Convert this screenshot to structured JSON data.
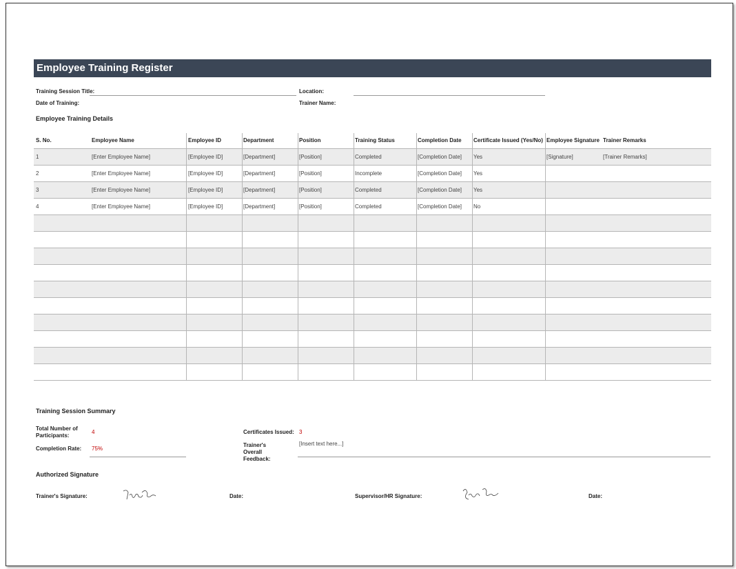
{
  "header": {
    "title": "Employee Training Register"
  },
  "session": {
    "title_label": "Training Session Title:",
    "location_label": "Location:",
    "date_label": "Date of Training:",
    "trainer_label": "Trainer Name:"
  },
  "details_title": "Employee Training Details",
  "table": {
    "columns": [
      "S. No.",
      "Employee Name",
      "Employee ID",
      "Department",
      "Position",
      "Training Status",
      "Completion Date",
      "Certificate Issued (Yes/No)",
      "Employee Signature",
      "Trainer Remarks"
    ],
    "rows": [
      [
        "1",
        "[Enter Employee Name]",
        "[Employee ID]",
        "[Department]",
        "[Position]",
        "Completed",
        "[Completion Date]",
        "Yes",
        "[Signature]",
        "[Trainer Remarks]"
      ],
      [
        "2",
        "[Enter Employee Name]",
        "[Employee ID]",
        "[Department]",
        "[Position]",
        "Incomplete",
        "[Completion Date]",
        "Yes"
      ],
      [
        "3",
        "[Enter Employee Name]",
        "[Employee ID]",
        "[Department]",
        "[Position]",
        "Completed",
        "[Completion Date]",
        "Yes"
      ],
      [
        "4",
        "[Enter Employee Name]",
        "[Employee ID]",
        "[Department]",
        "[Position]",
        "Completed",
        "[Completion Date]",
        "No"
      ]
    ]
  },
  "summary": {
    "title": "Training Session Summary",
    "participants_label": "Total Number of Participants:",
    "participants": "4",
    "completion_label": "Completion Rate:",
    "completion": "75%",
    "certificates_label": "Certificates Issued:",
    "certificates": "3",
    "feedback_label": "Trainer's Overall Feedback:",
    "feedback": "[Insert text here...]"
  },
  "signatures": {
    "title": "Authorized Signature",
    "trainer_label": "Trainer's Signature:",
    "trainer_date_label": "Date:",
    "supervisor_label": "Supervisor/HR Signature:",
    "supervisor_date_label": "Date:"
  }
}
